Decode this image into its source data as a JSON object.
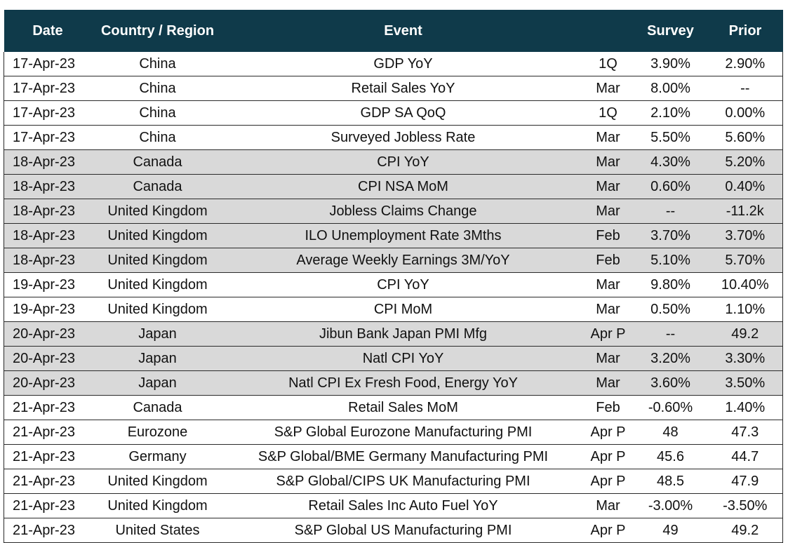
{
  "headers": [
    "Date",
    "Country / Region",
    "Event",
    "",
    "Survey",
    "Prior"
  ],
  "rows": [
    {
      "date": "17-Apr-23",
      "country": "China",
      "event": "GDP YoY",
      "period": "1Q",
      "survey": "3.90%",
      "prior": "2.90%",
      "shaded": false
    },
    {
      "date": "17-Apr-23",
      "country": "China",
      "event": "Retail Sales YoY",
      "period": "Mar",
      "survey": "8.00%",
      "prior": "--",
      "shaded": false
    },
    {
      "date": "17-Apr-23",
      "country": "China",
      "event": "GDP SA QoQ",
      "period": "1Q",
      "survey": "2.10%",
      "prior": "0.00%",
      "shaded": false
    },
    {
      "date": "17-Apr-23",
      "country": "China",
      "event": "Surveyed Jobless Rate",
      "period": "Mar",
      "survey": "5.50%",
      "prior": "5.60%",
      "shaded": false
    },
    {
      "date": "18-Apr-23",
      "country": "Canada",
      "event": "CPI YoY",
      "period": "Mar",
      "survey": "4.30%",
      "prior": "5.20%",
      "shaded": true
    },
    {
      "date": "18-Apr-23",
      "country": "Canada",
      "event": "CPI NSA MoM",
      "period": "Mar",
      "survey": "0.60%",
      "prior": "0.40%",
      "shaded": true
    },
    {
      "date": "18-Apr-23",
      "country": "United Kingdom",
      "event": "Jobless Claims Change",
      "period": "Mar",
      "survey": "--",
      "prior": "-11.2k",
      "shaded": true
    },
    {
      "date": "18-Apr-23",
      "country": "United Kingdom",
      "event": "ILO Unemployment Rate 3Mths",
      "period": "Feb",
      "survey": "3.70%",
      "prior": "3.70%",
      "shaded": true
    },
    {
      "date": "18-Apr-23",
      "country": "United Kingdom",
      "event": "Average Weekly Earnings 3M/YoY",
      "period": "Feb",
      "survey": "5.10%",
      "prior": "5.70%",
      "shaded": true
    },
    {
      "date": "19-Apr-23",
      "country": "United Kingdom",
      "event": "CPI YoY",
      "period": "Mar",
      "survey": "9.80%",
      "prior": "10.40%",
      "shaded": false
    },
    {
      "date": "19-Apr-23",
      "country": "United Kingdom",
      "event": "CPI MoM",
      "period": "Mar",
      "survey": "0.50%",
      "prior": "1.10%",
      "shaded": false
    },
    {
      "date": "20-Apr-23",
      "country": "Japan",
      "event": "Jibun Bank Japan PMI Mfg",
      "period": "Apr P",
      "survey": "--",
      "prior": "49.2",
      "shaded": true
    },
    {
      "date": "20-Apr-23",
      "country": "Japan",
      "event": "Natl CPI YoY",
      "period": "Mar",
      "survey": "3.20%",
      "prior": "3.30%",
      "shaded": true
    },
    {
      "date": "20-Apr-23",
      "country": "Japan",
      "event": "Natl CPI Ex Fresh Food, Energy YoY",
      "period": "Mar",
      "survey": "3.60%",
      "prior": "3.50%",
      "shaded": true
    },
    {
      "date": "21-Apr-23",
      "country": "Canada",
      "event": "Retail Sales MoM",
      "period": "Feb",
      "survey": "-0.60%",
      "prior": "1.40%",
      "shaded": false
    },
    {
      "date": "21-Apr-23",
      "country": "Eurozone",
      "event": "S&P Global Eurozone Manufacturing PMI",
      "period": "Apr P",
      "survey": "48",
      "prior": "47.3",
      "shaded": false
    },
    {
      "date": "21-Apr-23",
      "country": "Germany",
      "event": "S&P Global/BME Germany Manufacturing PMI",
      "period": "Apr P",
      "survey": "45.6",
      "prior": "44.7",
      "shaded": false
    },
    {
      "date": "21-Apr-23",
      "country": "United Kingdom",
      "event": "S&P Global/CIPS UK Manufacturing PMI",
      "period": "Apr P",
      "survey": "48.5",
      "prior": "47.9",
      "shaded": false
    },
    {
      "date": "21-Apr-23",
      "country": "United Kingdom",
      "event": "Retail Sales Inc Auto Fuel YoY",
      "period": "Mar",
      "survey": "-3.00%",
      "prior": "-3.50%",
      "shaded": false
    },
    {
      "date": "21-Apr-23",
      "country": "United States",
      "event": "S&P Global US Manufacturing PMI",
      "period": "Apr P",
      "survey": "49",
      "prior": "49.2",
      "shaded": false
    }
  ],
  "colors": {
    "header_bg": "#0f3a4a",
    "header_text": "#ffffff",
    "shaded_row": "#d9d9d9"
  }
}
